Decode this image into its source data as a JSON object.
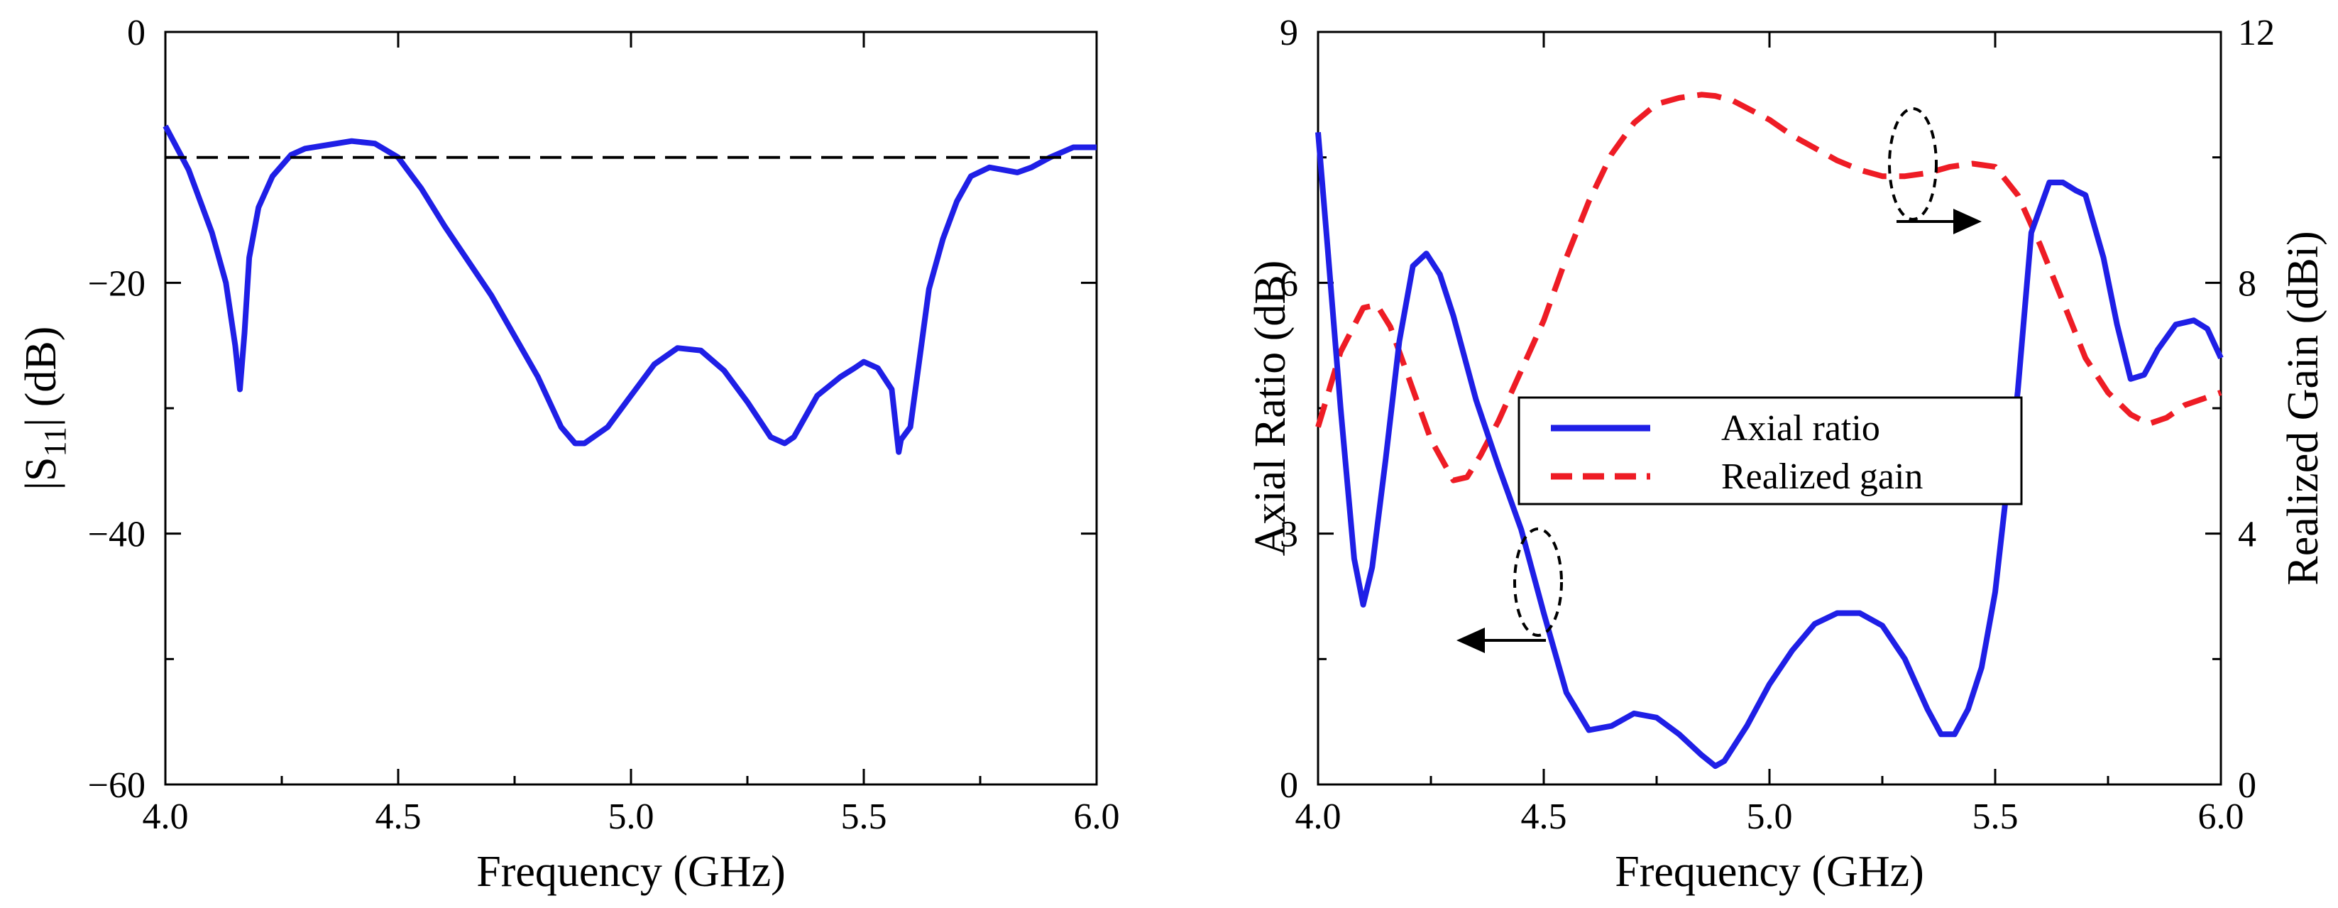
{
  "chart_data": [
    {
      "type": "line",
      "panel": "left",
      "xlabel": "Frequency (GHz)",
      "ylabel": "|S11| (dB)",
      "ylabel_main": "|S",
      "ylabel_sub": "11",
      "ylabel_tail": "| (dB)",
      "xlim": [
        4.0,
        6.0
      ],
      "ylim": [
        -60,
        0
      ],
      "x_ticks": [
        4.0,
        4.5,
        5.0,
        5.5,
        6.0
      ],
      "x_tick_labels": [
        "4.0",
        "4.5",
        "5.0",
        "5.5",
        "6.0"
      ],
      "y_ticks": [
        0,
        -20,
        -40,
        -60
      ],
      "y_tick_labels": [
        "0",
        "−20",
        "−40",
        "−60"
      ],
      "series": [
        {
          "name": "|S11|",
          "color": "#1f1fe6",
          "style": "solid",
          "x": [
            4.0,
            4.05,
            4.1,
            4.13,
            4.15,
            4.16,
            4.17,
            4.18,
            4.2,
            4.23,
            4.27,
            4.3,
            4.35,
            4.4,
            4.45,
            4.5,
            4.55,
            4.6,
            4.7,
            4.8,
            4.85,
            4.88,
            4.9,
            4.95,
            5.0,
            5.05,
            5.1,
            5.15,
            5.2,
            5.25,
            5.3,
            5.33,
            5.35,
            5.4,
            5.45,
            5.48,
            5.5,
            5.53,
            5.56,
            5.575,
            5.58,
            5.6,
            5.62,
            5.64,
            5.67,
            5.7,
            5.73,
            5.77,
            5.8,
            5.83,
            5.86,
            5.9,
            5.95,
            6.0
          ],
          "values": [
            -7.5,
            -11,
            -16,
            -20,
            -25,
            -28.5,
            -24,
            -18,
            -14,
            -11.5,
            -9.8,
            -9.3,
            -9.0,
            -8.7,
            -8.9,
            -10,
            -12.5,
            -15.5,
            -21,
            -27.5,
            -31.5,
            -32.8,
            -32.8,
            -31.5,
            -29,
            -26.5,
            -25.2,
            -25.4,
            -27,
            -29.5,
            -32.3,
            -32.8,
            -32.3,
            -29,
            -27.5,
            -26.8,
            -26.3,
            -26.8,
            -28.5,
            -33.5,
            -32.5,
            -31.5,
            -26,
            -20.5,
            -16.5,
            -13.5,
            -11.5,
            -10.8,
            -11,
            -11.2,
            -10.8,
            -10,
            -9.2,
            -9.2
          ]
        },
        {
          "name": "-10 dB reference",
          "color": "#000000",
          "style": "dashed",
          "x": [
            4.0,
            6.0
          ],
          "values": [
            -10,
            -10
          ]
        }
      ]
    },
    {
      "type": "line",
      "panel": "right",
      "xlabel": "Frequency (GHz)",
      "ylabel": "Axial Ratio (dB)",
      "y2label": "Realized Gain (dBi)",
      "xlim": [
        4.0,
        6.0
      ],
      "ylim": [
        0,
        9
      ],
      "y2lim": [
        0,
        12
      ],
      "x_ticks": [
        4.0,
        4.5,
        5.0,
        5.5,
        6.0
      ],
      "x_tick_labels": [
        "4.0",
        "4.5",
        "5.0",
        "5.5",
        "6.0"
      ],
      "y_ticks": [
        0,
        3,
        6,
        9
      ],
      "y_tick_labels": [
        "0",
        "3",
        "6",
        "9"
      ],
      "y2_ticks": [
        0,
        4,
        8,
        12
      ],
      "y2_tick_labels": [
        "0",
        "4",
        "8",
        "12"
      ],
      "legend": {
        "position": "center",
        "entries": [
          "Axial ratio",
          "Realized gain"
        ]
      },
      "series": [
        {
          "name": "Axial ratio",
          "axis": "left",
          "color": "#1f1fe6",
          "style": "solid",
          "x": [
            4.0,
            4.02,
            4.05,
            4.08,
            4.1,
            4.12,
            4.15,
            4.18,
            4.21,
            4.24,
            4.27,
            4.3,
            4.35,
            4.4,
            4.45,
            4.5,
            4.55,
            4.6,
            4.65,
            4.7,
            4.75,
            4.8,
            4.85,
            4.88,
            4.9,
            4.95,
            5.0,
            5.05,
            5.1,
            5.15,
            5.2,
            5.25,
            5.3,
            5.35,
            5.38,
            5.41,
            5.44,
            5.47,
            5.5,
            5.55,
            5.58,
            5.62,
            5.65,
            5.68,
            5.7,
            5.74,
            5.77,
            5.8,
            5.83,
            5.86,
            5.9,
            5.94,
            5.97,
            6.0
          ],
          "values": [
            7.8,
            6.5,
            4.5,
            2.7,
            2.15,
            2.6,
            3.9,
            5.3,
            6.2,
            6.35,
            6.1,
            5.6,
            4.6,
            3.8,
            3.05,
            2.05,
            1.1,
            0.65,
            0.7,
            0.85,
            0.8,
            0.6,
            0.35,
            0.22,
            0.28,
            0.7,
            1.2,
            1.6,
            1.92,
            2.05,
            2.05,
            1.9,
            1.5,
            0.9,
            0.6,
            0.6,
            0.9,
            1.4,
            2.3,
            4.7,
            6.6,
            7.2,
            7.2,
            7.1,
            7.05,
            6.3,
            5.5,
            4.85,
            4.9,
            5.2,
            5.5,
            5.55,
            5.45,
            5.1
          ]
        },
        {
          "name": "Realized gain",
          "axis": "right",
          "color": "#ee1c25",
          "style": "dashed",
          "x": [
            4.0,
            4.05,
            4.1,
            4.13,
            4.16,
            4.2,
            4.25,
            4.3,
            4.33,
            4.36,
            4.4,
            4.45,
            4.5,
            4.55,
            4.6,
            4.65,
            4.7,
            4.75,
            4.8,
            4.85,
            4.88,
            4.92,
            4.96,
            5.0,
            5.05,
            5.1,
            5.15,
            5.2,
            5.25,
            5.3,
            5.35,
            5.4,
            5.45,
            5.5,
            5.55,
            5.6,
            5.65,
            5.7,
            5.75,
            5.8,
            5.84,
            5.88,
            5.92,
            5.96,
            6.0
          ],
          "values": [
            5.7,
            6.9,
            7.6,
            7.65,
            7.3,
            6.5,
            5.5,
            4.85,
            4.9,
            5.25,
            5.8,
            6.6,
            7.4,
            8.4,
            9.3,
            10.05,
            10.55,
            10.85,
            10.95,
            11.0,
            10.98,
            10.9,
            10.75,
            10.6,
            10.35,
            10.15,
            9.95,
            9.8,
            9.7,
            9.7,
            9.75,
            9.85,
            9.9,
            9.85,
            9.4,
            8.6,
            7.7,
            6.8,
            6.25,
            5.9,
            5.75,
            5.85,
            6.05,
            6.15,
            6.25
          ]
        }
      ]
    }
  ]
}
